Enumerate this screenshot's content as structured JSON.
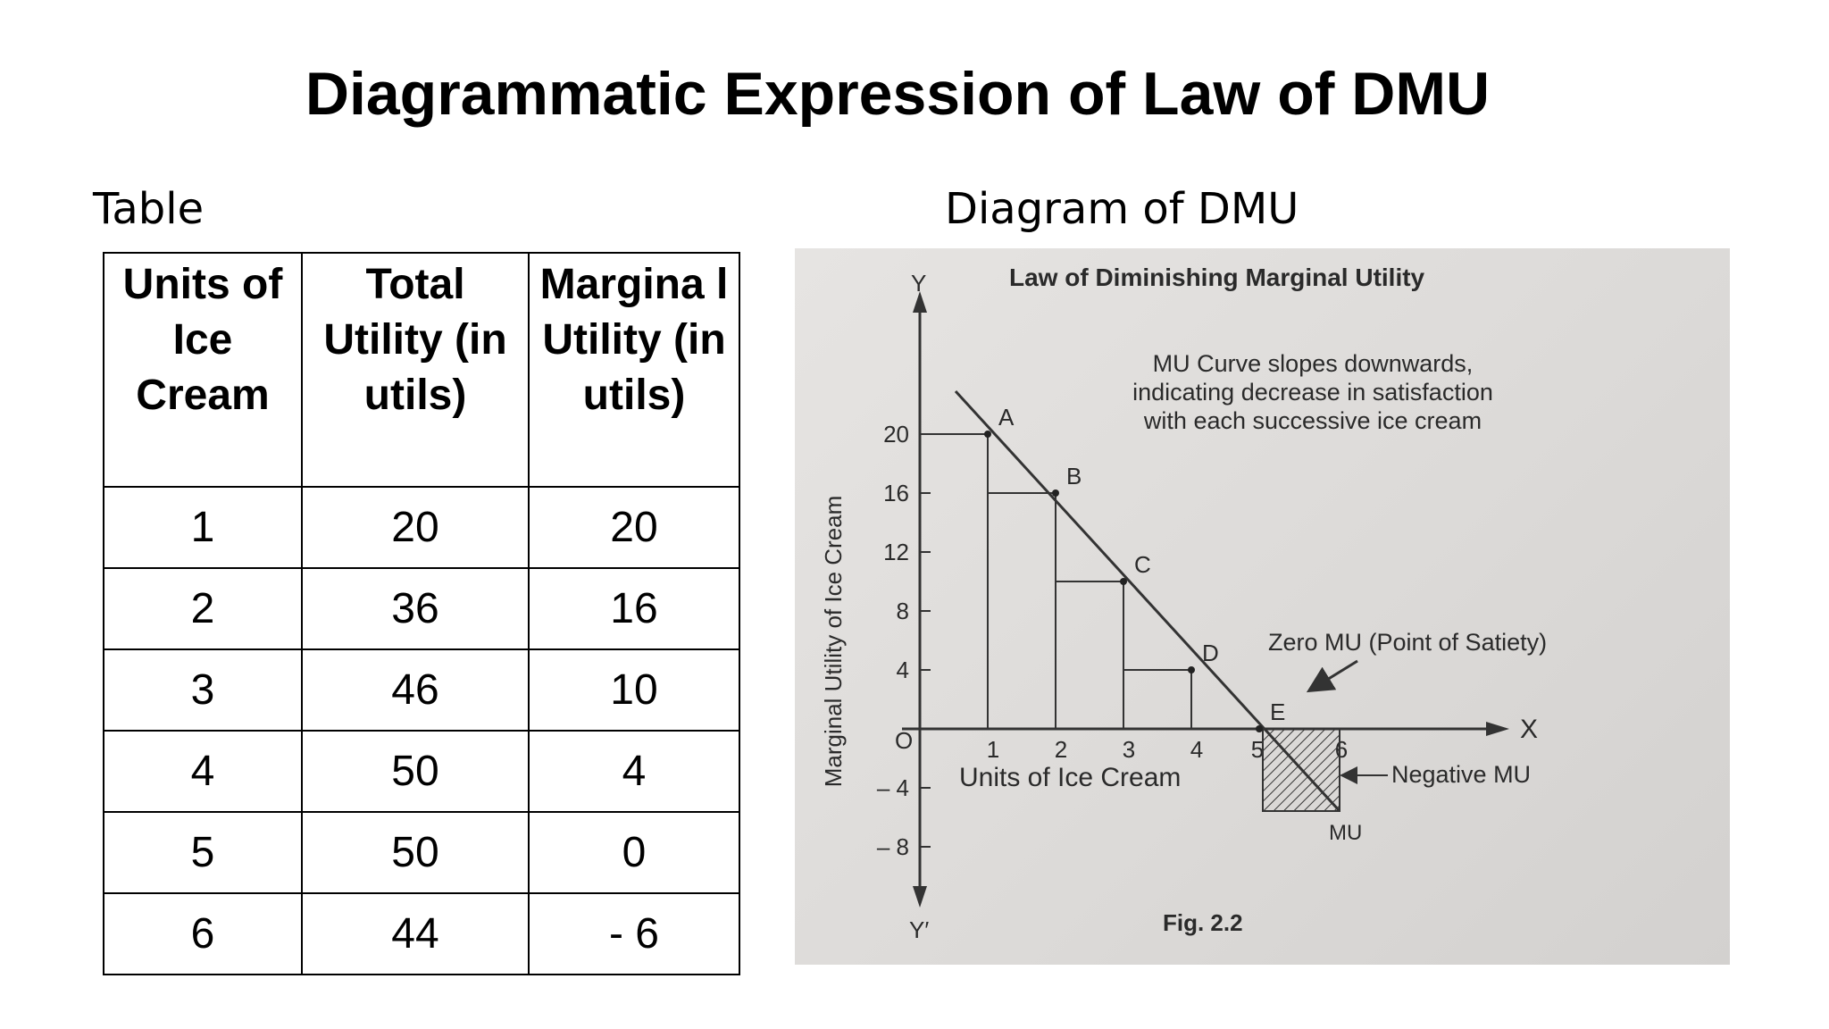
{
  "slide": {
    "title": "Diagrammatic Expression of Law of DMU",
    "table_caption": "Table",
    "diagram_caption": "Diagram of DMU"
  },
  "table": {
    "headers": [
      "Units of Ice Cream",
      "Total Utility (in utils)",
      "Margina l Utility (in utils)"
    ],
    "rows": [
      [
        "1",
        "20",
        "20"
      ],
      [
        "2",
        "36",
        "16"
      ],
      [
        "3",
        "46",
        "10"
      ],
      [
        "4",
        "50",
        "4"
      ],
      [
        "5",
        "50",
        "0"
      ],
      [
        "6",
        "44",
        "- 6"
      ]
    ]
  },
  "figure": {
    "title": "Law of Diminishing Marginal Utility",
    "y_axis_letter": "Y",
    "y_axis_letter_neg": "Y′",
    "x_axis_letter": "X",
    "origin": "O",
    "ylabel": "Marginal Utility of Ice Cream",
    "xlabel": "Units of Ice Cream",
    "annotation_lines": [
      "MU Curve slopes downwards,",
      "indicating decrease in satisfaction",
      "with each successive ice cream"
    ],
    "satiety_note": "Zero MU (Point of Satiety)",
    "negative_note": "Negative MU",
    "curve_label": "MU",
    "caption": "Fig. 2.2",
    "y_ticks": [
      "20",
      "16",
      "12",
      "8",
      "4",
      "– 4",
      "– 8"
    ],
    "x_ticks": [
      "1",
      "2",
      "3",
      "4",
      "5",
      "6"
    ],
    "points": [
      {
        "label": "A",
        "x": 1,
        "y": 20
      },
      {
        "label": "B",
        "x": 2,
        "y": 16
      },
      {
        "label": "C",
        "x": 3,
        "y": 10
      },
      {
        "label": "D",
        "x": 4,
        "y": 4
      },
      {
        "label": "E",
        "x": 5,
        "y": 0
      }
    ]
  }
}
